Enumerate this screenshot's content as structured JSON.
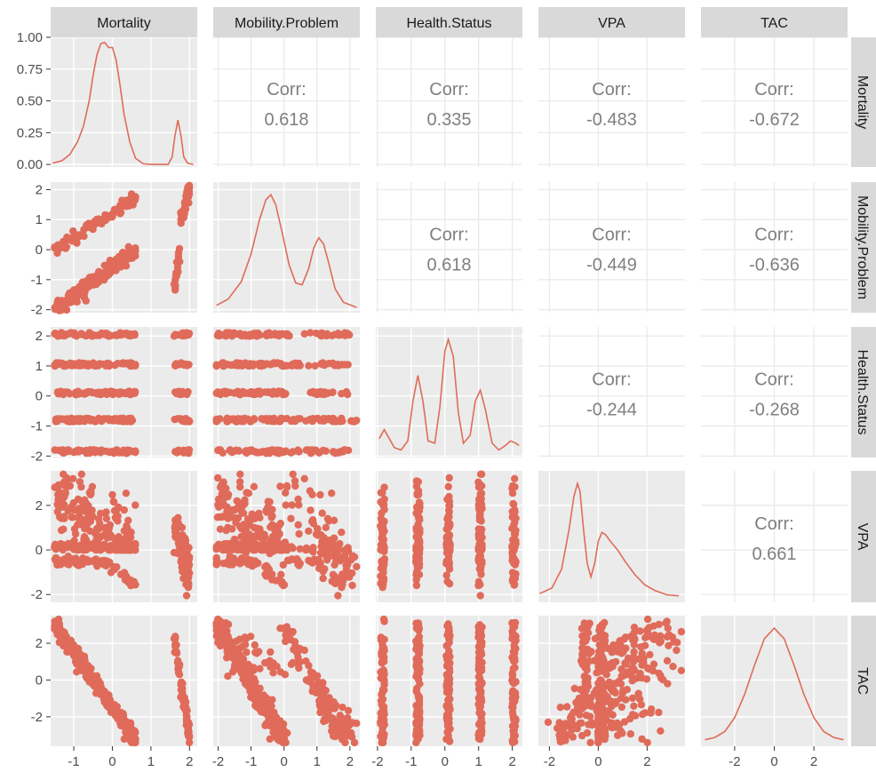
{
  "chart_data": {
    "type": "scatter",
    "variables": [
      "Mortality",
      "Mobility.Problem",
      "Health.Status",
      "VPA",
      "TAC"
    ],
    "correlation_label": "Corr:",
    "correlations": [
      {
        "row": "Mortality",
        "col": "Mobility.Problem",
        "value": "0.618"
      },
      {
        "row": "Mortality",
        "col": "Health.Status",
        "value": "0.335"
      },
      {
        "row": "Mortality",
        "col": "VPA",
        "value": "-0.483"
      },
      {
        "row": "Mortality",
        "col": "TAC",
        "value": "-0.672"
      },
      {
        "row": "Mobility.Problem",
        "col": "Health.Status",
        "value": "0.618"
      },
      {
        "row": "Mobility.Problem",
        "col": "VPA",
        "value": "-0.449"
      },
      {
        "row": "Mobility.Problem",
        "col": "TAC",
        "value": "-0.636"
      },
      {
        "row": "Health.Status",
        "col": "VPA",
        "value": "-0.244"
      },
      {
        "row": "Health.Status",
        "col": "TAC",
        "value": "-0.268"
      },
      {
        "row": "VPA",
        "col": "TAC",
        "value": "0.661"
      }
    ],
    "x_axes": [
      {
        "var": "Mortality",
        "range": [
          -1.6,
          2.2
        ],
        "ticks": [
          -1,
          0,
          1,
          2
        ]
      },
      {
        "var": "Mobility.Problem",
        "range": [
          -2.15,
          2.3
        ],
        "ticks": [
          -2,
          -1,
          0,
          1,
          2
        ]
      },
      {
        "var": "Health.Status",
        "range": [
          -2.05,
          2.3
        ],
        "ticks": [
          -2,
          -1,
          0,
          1,
          2
        ]
      },
      {
        "var": "VPA",
        "range": [
          -2.45,
          3.55
        ],
        "ticks": [
          -2,
          0,
          2
        ]
      },
      {
        "var": "TAC",
        "range": [
          -3.7,
          3.7
        ],
        "ticks": [
          -2,
          0,
          2
        ]
      }
    ],
    "y_axes": [
      {
        "var": "Mortality",
        "label_note": "density",
        "range": [
          -0.02,
          1.0
        ],
        "ticks": [
          "0.00",
          "0.25",
          "0.50",
          "0.75",
          "1.00"
        ]
      },
      {
        "var": "Mobility.Problem",
        "range": [
          -2.1,
          2.25
        ],
        "ticks": [
          -2,
          -1,
          0,
          1,
          2
        ]
      },
      {
        "var": "Health.Status",
        "range": [
          -2.05,
          2.3
        ],
        "ticks": [
          -2,
          -1,
          0,
          1,
          2
        ]
      },
      {
        "var": "VPA",
        "range": [
          -2.35,
          3.55
        ],
        "ticks": [
          -2,
          0,
          2
        ]
      },
      {
        "var": "TAC",
        "range": [
          -3.6,
          3.5
        ],
        "ticks": [
          -2,
          0,
          2
        ]
      }
    ],
    "density_curves": [
      {
        "var": "Mortality",
        "x": [
          -1.55,
          -1.3,
          -1.1,
          -0.9,
          -0.75,
          -0.6,
          -0.5,
          -0.4,
          -0.3,
          -0.2,
          -0.1,
          0.0,
          0.1,
          0.2,
          0.3,
          0.45,
          0.6,
          0.8,
          1.0,
          1.2,
          1.45,
          1.55,
          1.62,
          1.7,
          1.78,
          1.85,
          1.95,
          2.1
        ],
        "y": [
          0.01,
          0.03,
          0.08,
          0.18,
          0.3,
          0.5,
          0.7,
          0.86,
          0.95,
          0.96,
          0.92,
          0.92,
          0.82,
          0.62,
          0.4,
          0.18,
          0.05,
          0.005,
          0.0,
          0.0,
          0.0,
          0.06,
          0.22,
          0.35,
          0.22,
          0.06,
          0.01,
          0.0
        ]
      },
      {
        "var": "Mobility.Problem",
        "x": [
          -2.05,
          -1.7,
          -1.3,
          -1.0,
          -0.75,
          -0.55,
          -0.4,
          -0.25,
          -0.05,
          0.15,
          0.35,
          0.55,
          0.75,
          0.9,
          1.05,
          1.2,
          1.35,
          1.55,
          1.8,
          2.2
        ],
        "y": [
          0.02,
          0.08,
          0.25,
          0.52,
          0.85,
          1.05,
          1.1,
          1.0,
          0.72,
          0.42,
          0.24,
          0.22,
          0.38,
          0.58,
          0.68,
          0.62,
          0.44,
          0.18,
          0.05,
          0.0
        ]
      },
      {
        "var": "Health.Status",
        "x": [
          -1.95,
          -1.8,
          -1.65,
          -1.5,
          -1.3,
          -1.1,
          -0.95,
          -0.8,
          -0.65,
          -0.5,
          -0.3,
          -0.15,
          0.0,
          0.1,
          0.25,
          0.4,
          0.55,
          0.75,
          0.9,
          1.05,
          1.2,
          1.4,
          1.6,
          1.8,
          1.95,
          2.1,
          2.2
        ],
        "y": [
          0.12,
          0.2,
          0.12,
          0.04,
          0.02,
          0.1,
          0.45,
          0.68,
          0.45,
          0.1,
          0.08,
          0.4,
          0.9,
          1.0,
          0.85,
          0.35,
          0.08,
          0.15,
          0.45,
          0.55,
          0.38,
          0.08,
          0.02,
          0.06,
          0.1,
          0.08,
          0.06
        ]
      },
      {
        "var": "VPA",
        "x": [
          -2.4,
          -1.9,
          -1.5,
          -1.2,
          -1.0,
          -0.85,
          -0.75,
          -0.6,
          -0.45,
          -0.3,
          -0.15,
          0.0,
          0.15,
          0.3,
          0.5,
          0.8,
          1.1,
          1.5,
          1.9,
          2.3,
          2.8,
          3.3
        ],
        "y": [
          0.03,
          0.08,
          0.25,
          0.6,
          0.9,
          1.02,
          0.95,
          0.6,
          0.3,
          0.18,
          0.3,
          0.5,
          0.58,
          0.56,
          0.5,
          0.42,
          0.32,
          0.2,
          0.11,
          0.06,
          0.02,
          0.01
        ]
      },
      {
        "var": "TAC",
        "x": [
          -3.5,
          -3.0,
          -2.5,
          -2.0,
          -1.5,
          -1.0,
          -0.5,
          0.0,
          0.5,
          1.0,
          1.5,
          2.0,
          2.5,
          3.0,
          3.5
        ],
        "y": [
          0.01,
          0.03,
          0.08,
          0.2,
          0.4,
          0.65,
          0.88,
          0.97,
          0.88,
          0.65,
          0.4,
          0.2,
          0.08,
          0.03,
          0.01
        ]
      }
    ],
    "colors": {
      "points": "#e06b5a",
      "curves": "#e06b5a",
      "panel": "#ebebeb",
      "grid": "#ffffff",
      "strip": "#d9d9d9",
      "corr_text": "#7f7f7f"
    },
    "grid": true
  }
}
